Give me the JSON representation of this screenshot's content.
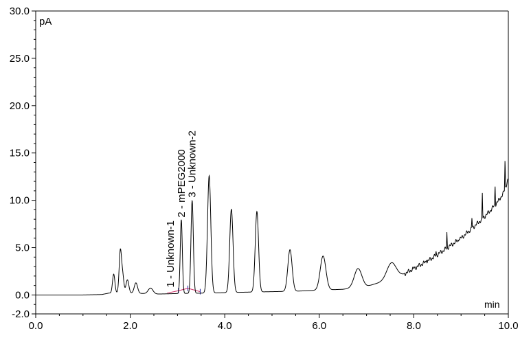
{
  "chart_data": {
    "type": "line",
    "title": "",
    "ylabel": "pA",
    "xlabel": "min",
    "xlim": [
      0.0,
      10.0
    ],
    "ylim": [
      -2.0,
      30.0
    ],
    "x_ticks": [
      "0.0",
      "2.0",
      "4.0",
      "6.0",
      "8.0",
      "10.0"
    ],
    "y_ticks": [
      "-2.0",
      "0.0",
      "5.0",
      "10.0",
      "15.0",
      "20.0",
      "25.0",
      "30.0"
    ],
    "grid": false,
    "colors": {
      "trace": "#000000",
      "baseline": "#d0306a",
      "marker": "#1a1aa0"
    },
    "baseline": [
      {
        "x": 0.0,
        "y": 0.0
      },
      {
        "x": 0.5,
        "y": 0.0
      },
      {
        "x": 1.0,
        "y": 0.0
      },
      {
        "x": 1.4,
        "y": 0.05
      },
      {
        "x": 1.55,
        "y": 0.2
      },
      {
        "x": 2.0,
        "y": 0.2
      },
      {
        "x": 2.6,
        "y": 0.1
      },
      {
        "x": 3.0,
        "y": 0.15
      },
      {
        "x": 3.6,
        "y": 0.2
      },
      {
        "x": 4.5,
        "y": 0.3
      },
      {
        "x": 5.0,
        "y": 0.35
      },
      {
        "x": 5.5,
        "y": 0.4
      },
      {
        "x": 6.0,
        "y": 0.5
      },
      {
        "x": 6.5,
        "y": 0.6
      },
      {
        "x": 7.0,
        "y": 0.9
      },
      {
        "x": 7.2,
        "y": 1.2
      },
      {
        "x": 7.6,
        "y": 1.7
      },
      {
        "x": 7.8,
        "y": 2.2
      },
      {
        "x": 8.0,
        "y": 2.8
      },
      {
        "x": 8.3,
        "y": 3.6
      },
      {
        "x": 8.6,
        "y": 4.6
      },
      {
        "x": 8.8,
        "y": 5.3
      },
      {
        "x": 9.0,
        "y": 6.0
      },
      {
        "x": 9.2,
        "y": 6.9
      },
      {
        "x": 9.4,
        "y": 7.8
      },
      {
        "x": 9.6,
        "y": 8.8
      },
      {
        "x": 9.8,
        "y": 10.0
      },
      {
        "x": 9.9,
        "y": 10.8
      },
      {
        "x": 10.0,
        "y": 12.3
      }
    ],
    "peaks": [
      {
        "rt": 1.65,
        "height": 2.0,
        "width": 0.025
      },
      {
        "rt": 1.79,
        "height": 4.4,
        "width": 0.025
      },
      {
        "rt": 1.84,
        "height": 1.8,
        "width": 0.025
      },
      {
        "rt": 1.94,
        "height": 1.4,
        "width": 0.03
      },
      {
        "rt": 2.12,
        "height": 1.1,
        "width": 0.035
      },
      {
        "rt": 2.43,
        "height": 0.6,
        "width": 0.05
      },
      {
        "rt": 3.08,
        "height": 7.8,
        "width": 0.022
      },
      {
        "rt": 3.31,
        "height": 9.8,
        "width": 0.025
      },
      {
        "rt": 3.67,
        "height": 12.4,
        "width": 0.035
      },
      {
        "rt": 4.14,
        "height": 8.8,
        "width": 0.035
      },
      {
        "rt": 4.68,
        "height": 8.5,
        "width": 0.035
      },
      {
        "rt": 5.38,
        "height": 4.4,
        "width": 0.045
      },
      {
        "rt": 6.08,
        "height": 3.6,
        "width": 0.06
      },
      {
        "rt": 6.82,
        "height": 2.0,
        "width": 0.08
      },
      {
        "rt": 7.53,
        "height": 1.8,
        "width": 0.1
      }
    ],
    "spikes": [
      {
        "x": 8.27,
        "y": 3.9
      },
      {
        "x": 8.47,
        "y": 4.6
      },
      {
        "x": 8.7,
        "y": 6.6
      },
      {
        "x": 8.96,
        "y": 6.1
      },
      {
        "x": 9.23,
        "y": 8.2
      },
      {
        "x": 9.45,
        "y": 10.7
      },
      {
        "x": 9.72,
        "y": 11.7
      },
      {
        "x": 9.93,
        "y": 14.3
      }
    ],
    "annotations": [
      {
        "label": "1 - Unknown-1",
        "x": 2.85,
        "y": 0.5
      },
      {
        "label": "2 - mPEG2000",
        "x": 3.08,
        "y": 7.9
      },
      {
        "label": "3 - Unknown-2",
        "x": 3.31,
        "y": 10.0
      }
    ],
    "integration_baselines": [
      {
        "x1": 2.78,
        "y1": 0.2,
        "x2": 3.02,
        "y2": 0.45
      },
      {
        "x1": 3.02,
        "y1": 0.45,
        "x2": 3.22,
        "y2": 0.7
      },
      {
        "x1": 3.22,
        "y1": 0.7,
        "x2": 3.48,
        "y2": 0.35
      }
    ]
  }
}
